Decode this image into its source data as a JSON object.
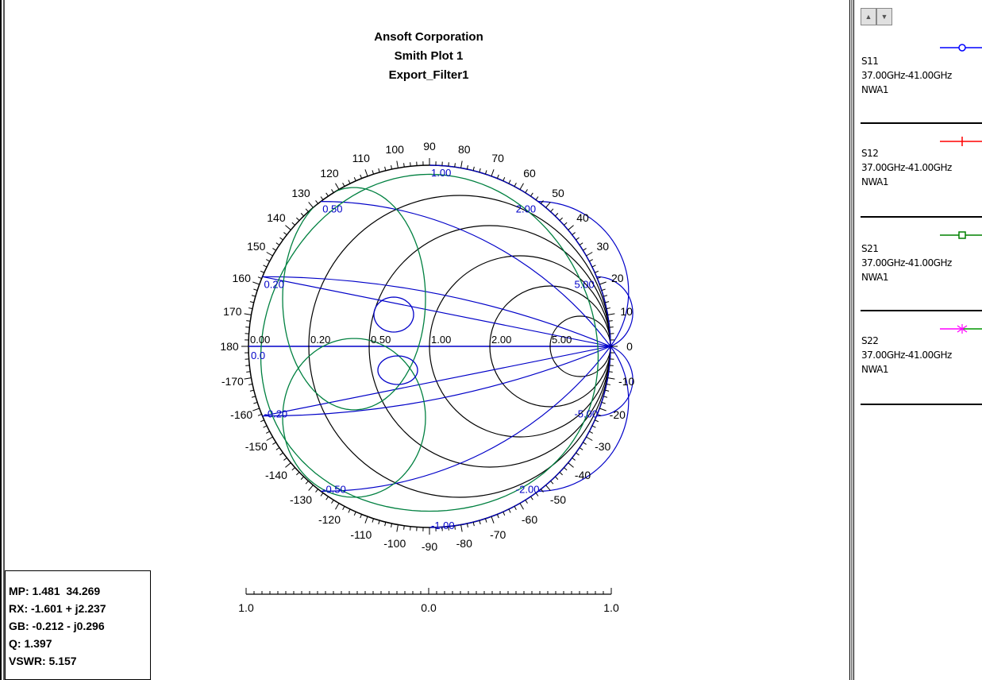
{
  "chart_data": {
    "type": "smith",
    "title": [
      "Ansoft Corporation",
      "Smith Plot 1",
      "Export_Filter1"
    ],
    "angle_ticks": [
      "90",
      "100",
      "110",
      "120",
      "130",
      "140",
      "150",
      "160",
      "170",
      "180",
      "-170",
      "-160",
      "-150",
      "-140",
      "-130",
      "-120",
      "-110",
      "-100",
      "-90",
      "-80",
      "-70",
      "-60",
      "-50",
      "-40",
      "-30",
      "-20",
      "-10",
      "0",
      "10",
      "20",
      "30",
      "40",
      "50",
      "60",
      "70",
      "80"
    ],
    "resistance_labels": [
      "0.00",
      "0.20",
      "0.50",
      "1.00",
      "2.00",
      "5.00"
    ],
    "reactance_labels": [
      "1.00",
      "0.50",
      "2.00",
      "0.20",
      "5.00",
      "0.0",
      "-0.20",
      "-5.00",
      "-0.50",
      "-2.00",
      "-1.00"
    ],
    "scale_labels": [
      "1.0",
      "0.0",
      "1.0"
    ],
    "series": [
      {
        "name": "S11",
        "color": "#0000ff",
        "marker": "circle"
      },
      {
        "name": "S12",
        "color": "#ff0000",
        "marker": "plus"
      },
      {
        "name": "S21",
        "color": "#008000",
        "marker": "square"
      },
      {
        "name": "S22",
        "color": "#ff00ff",
        "marker": "star"
      }
    ]
  },
  "marker_readout": {
    "mp": "MP: 1.481  34.269",
    "rx": "RX: -1.601 + j2.237",
    "gb": "GB: -0.212 - j0.296",
    "q": "Q: 1.397",
    "vswr": "VSWR: 5.157"
  },
  "legend": [
    {
      "name": "S11",
      "range": "37.00GHz-41.00GHz",
      "source": "NWA1",
      "color": "#0000ff"
    },
    {
      "name": "S12",
      "range": "37.00GHz-41.00GHz",
      "source": "NWA1",
      "color": "#ff0000"
    },
    {
      "name": "S21",
      "range": "37.00GHz-41.00GHz",
      "source": "NWA1",
      "color": "#008000"
    },
    {
      "name": "S22",
      "range": "37.00GHz-41.00GHz",
      "source": "NWA1",
      "color": "#ff00ff"
    }
  ]
}
